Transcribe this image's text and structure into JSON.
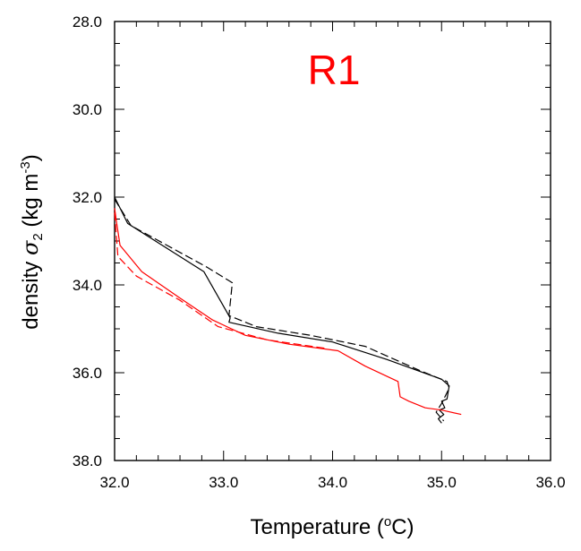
{
  "chart_data": {
    "type": "line",
    "title": "R1",
    "title_color": "#ff0000",
    "xlabel": "Temperature (",
    "xlabel_sup": "o",
    "xlabel_end": "C)",
    "ylabel_prefix": "density ",
    "ylabel_symbol": "σ",
    "ylabel_sub": "2",
    "ylabel_units": " (kg m",
    "ylabel_sup": "-3",
    "ylabel_end": ")",
    "xlim": [
      32.0,
      36.0
    ],
    "ylim": [
      28.0,
      38.0
    ],
    "y_inverted": true,
    "x_ticks": [
      "32.0",
      "33.0",
      "34.0",
      "35.0",
      "36.0"
    ],
    "y_ticks": [
      "28.0",
      "30.0",
      "32.0",
      "34.0",
      "36.0",
      "38.0"
    ],
    "grid": false,
    "series": [
      {
        "color": "#000000",
        "style": "solid",
        "x": [
          32.0,
          32.12,
          32.82,
          33.06,
          33.05,
          33.5,
          34.0,
          34.5,
          35.0,
          35.07,
          35.05,
          35.0,
          35.03,
          34.98,
          35.02,
          34.97,
          35.0
        ],
        "y": [
          32.0,
          32.6,
          33.7,
          34.75,
          34.85,
          35.1,
          35.3,
          35.7,
          36.15,
          36.3,
          36.6,
          36.65,
          36.8,
          36.85,
          36.95,
          37.05,
          37.15
        ]
      },
      {
        "color": "#000000",
        "style": "dashed",
        "x": [
          32.0,
          32.15,
          32.85,
          33.08,
          33.05,
          33.3,
          33.8,
          34.3,
          34.8,
          35.05,
          35.07,
          35.0,
          34.95,
          35.02
        ],
        "y": [
          32.05,
          32.65,
          33.6,
          33.95,
          34.7,
          34.95,
          35.15,
          35.4,
          35.95,
          36.2,
          36.35,
          36.7,
          36.9,
          37.1
        ]
      },
      {
        "color": "#ff0000",
        "style": "solid",
        "x": [
          32.0,
          32.02,
          32.05,
          32.25,
          32.6,
          32.9,
          33.2,
          33.6,
          34.05,
          34.3,
          34.6,
          34.62,
          34.7,
          34.85,
          35.0,
          35.18
        ],
        "y": [
          32.25,
          32.6,
          33.1,
          33.7,
          34.3,
          34.8,
          35.15,
          35.35,
          35.5,
          35.85,
          36.2,
          36.55,
          36.65,
          36.8,
          36.85,
          36.95
        ]
      },
      {
        "color": "#ff0000",
        "style": "dashed",
        "x": [
          32.0,
          32.03,
          32.2,
          32.6,
          32.95,
          33.4,
          33.95
        ],
        "y": [
          32.35,
          33.35,
          33.8,
          34.35,
          34.95,
          35.25,
          35.45
        ]
      }
    ]
  }
}
